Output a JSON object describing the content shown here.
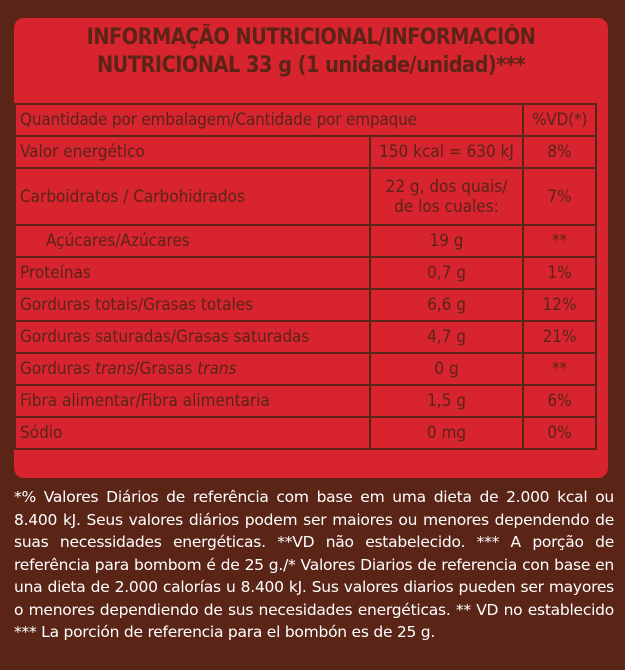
{
  "title": {
    "line1": "INFORMAÇÃO NUTRICIONAL/INFORMACIÓN",
    "line2": "NUTRICIONAL 33 g (1 unidade/unidad)***"
  },
  "table": {
    "header": {
      "label": "Quantidade por embalagem/Cantidade por empaque",
      "vd": "%VD(*)"
    },
    "rows": [
      {
        "label": "Valor energético",
        "amount": "150 kcal = 630 kJ",
        "vd": "8%"
      },
      {
        "label": "Carboidratos / Carbohidrados",
        "amount_line1": "22 g, dos quais/",
        "amount_line2": "de los cuales:",
        "vd": "7%"
      },
      {
        "label": "Açúcares/Azúcares",
        "amount": "19 g",
        "vd": "**"
      },
      {
        "label": "Proteínas",
        "amount": "0,7 g",
        "vd": "1%"
      },
      {
        "label": "Gorduras totais/Grasas totales",
        "amount": "6,6 g",
        "vd": "12%"
      },
      {
        "label": "Gorduras saturadas/Grasas saturadas",
        "amount": "4,7 g",
        "vd": "21%"
      },
      {
        "label_pre": "Gorduras ",
        "label_italic1": "trans",
        "label_mid": "/Grasas ",
        "label_italic2": "trans",
        "amount": "0 g",
        "vd": "**"
      },
      {
        "label": "Fibra alimentar/Fibra alimentaria",
        "amount": "1,5 g",
        "vd": "6%"
      },
      {
        "label": "Sódio",
        "amount": "0 mg",
        "vd": "0%"
      }
    ]
  },
  "footnote": "*% Valores Diários de referência com base em uma dieta de 2.000 kcal ou 8.400 kJ. Seus valores diários podem ser maiores ou menores dependendo de suas necessidades energéticas. **VD não estabelecido. *** A porção de referência para bombom é de 25 g./* Valores Diarios de referencia con base en una dieta de 2.000 calorías u 8.400 kJ. Sus valores diarios pueden ser mayores o menores dependiendo de sus necesidades energéticas. ** VD no establecido *** La porción de referencia para el bombón es de 25 g.",
  "colors": {
    "panel_red": "#d7242f",
    "brown": "#5a2417",
    "footnote_text": "#ffffff"
  }
}
